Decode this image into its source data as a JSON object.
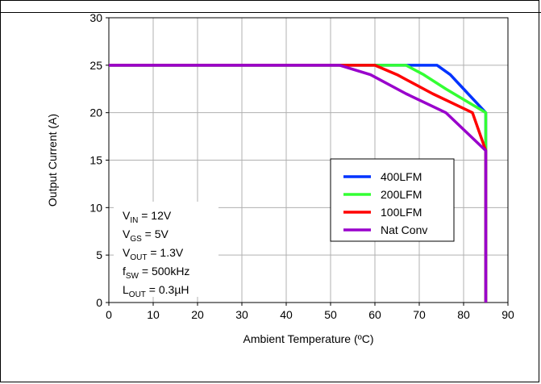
{
  "chart_data": {
    "type": "line",
    "title": "",
    "xlabel": "Ambient Temperature (ºC)",
    "ylabel": "Output Current (A)",
    "xlim": [
      0,
      90
    ],
    "ylim": [
      0,
      30
    ],
    "xticks": [
      0,
      10,
      20,
      30,
      40,
      50,
      60,
      70,
      80,
      90
    ],
    "yticks": [
      0,
      5,
      10,
      15,
      20,
      25,
      30
    ],
    "grid": true,
    "legend_position": "center-right",
    "series": [
      {
        "name": "400LFM",
        "color": "#0033ff",
        "x": [
          0,
          74,
          77,
          80,
          85,
          85,
          85
        ],
        "y": [
          25,
          25,
          24,
          22.5,
          20,
          16,
          0
        ]
      },
      {
        "name": "200LFM",
        "color": "#33ff33",
        "x": [
          0,
          67,
          71,
          76,
          85,
          85,
          85
        ],
        "y": [
          25,
          25,
          24,
          22.5,
          20,
          16,
          0
        ]
      },
      {
        "name": "100LFM",
        "color": "#ff0000",
        "x": [
          0,
          60,
          65,
          73,
          82,
          85,
          85
        ],
        "y": [
          25,
          25,
          24,
          22,
          20,
          16,
          0
        ]
      },
      {
        "name": "Nat Conv",
        "color": "#9900cc",
        "x": [
          0,
          52,
          59,
          67,
          76,
          85,
          85
        ],
        "y": [
          25,
          25,
          24,
          22,
          20,
          16,
          0
        ]
      }
    ],
    "conditions": [
      {
        "main": "V",
        "sub": "IN",
        "rest": " = 12V"
      },
      {
        "main": "V",
        "sub": "GS",
        "rest": " = 5V"
      },
      {
        "main": "V",
        "sub": "OUT",
        "rest": " = 1.3V"
      },
      {
        "main": "f",
        "sub": "SW",
        "rest": " = 500kHz"
      },
      {
        "main": "L",
        "sub": "OUT",
        "rest": " = 0.3µH"
      }
    ]
  }
}
